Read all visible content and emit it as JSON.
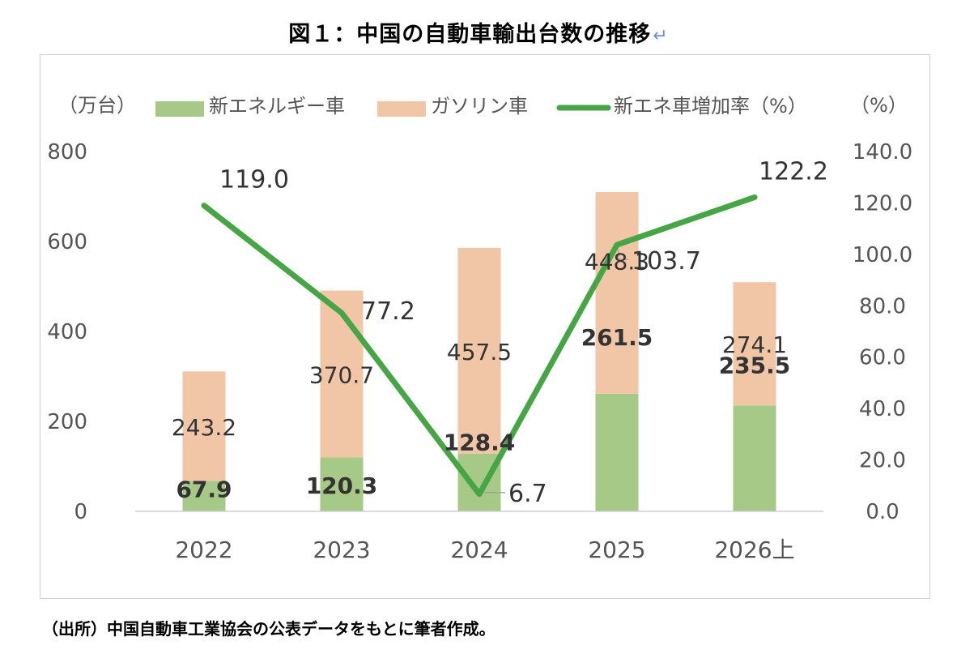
{
  "title": "図１：中国の自動車輸出台数の推移",
  "title_mark": "↵",
  "source": "（出所）中国自動車工業協会の公表データをもとに筆者作成。",
  "colors": {
    "nev": "#a7c987",
    "gasoline": "#f0c6a7",
    "line": "#46a544",
    "axis_text": "#555555",
    "label_text": "#333333"
  },
  "chart_data": {
    "type": "bar",
    "stacked": true,
    "categories": [
      "2022",
      "2023",
      "2024",
      "2025",
      "2026上"
    ],
    "y_left_unit": "（万台）",
    "y_right_unit": "（%）",
    "y_left_range": [
      0,
      800
    ],
    "y_left_ticks": [
      "0",
      "200",
      "400",
      "600",
      "800"
    ],
    "y_right_range": [
      0,
      140
    ],
    "y_right_ticks": [
      "0.0",
      "20.0",
      "40.0",
      "60.0",
      "80.0",
      "100.0",
      "120.0",
      "140.0"
    ],
    "grid": false,
    "legend_position": "top",
    "series": [
      {
        "name": "新エネルギー車",
        "type": "bar",
        "axis": "left",
        "values": [
          67.9,
          120.3,
          128.4,
          261.5,
          235.5
        ],
        "labels": [
          "67.9",
          "120.3",
          "128.4",
          "261.5",
          "235.5"
        ]
      },
      {
        "name": "ガソリン車",
        "type": "bar",
        "axis": "left",
        "values": [
          243.2,
          370.7,
          457.5,
          448.3,
          274.1
        ],
        "labels": [
          "243.2",
          "370.7",
          "457.5",
          "448.3",
          "274.1"
        ]
      },
      {
        "name": "新エネ車増加率（%）",
        "type": "line",
        "axis": "right",
        "values": [
          119.0,
          77.2,
          6.7,
          103.7,
          122.2
        ],
        "labels": [
          "119.0",
          "77.2",
          "6.7",
          "103.7",
          "122.2"
        ]
      }
    ]
  }
}
